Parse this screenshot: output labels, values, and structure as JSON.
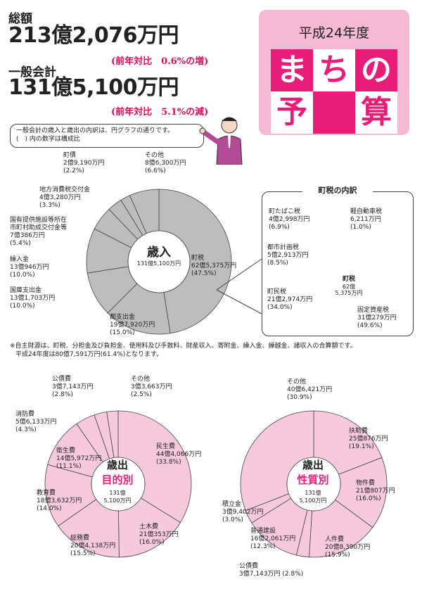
{
  "header": {
    "total_label": "総額",
    "total_value": "213億2,076万円",
    "total_compare": "(前年対比　0.6%の増)",
    "general_label": "一般会計",
    "general_value": "131億5,100万円",
    "general_compare": "(前年対比　5.1%の減)"
  },
  "title_box": {
    "year": "平成24年度",
    "chars": [
      "ま",
      "ち",
      "の",
      "予",
      "算"
    ]
  },
  "intro_note": {
    "line1": "一般会計の歳入と歳出の内訳は、円グラフの通りです。",
    "line2": "(　) 内の数字は構成比"
  },
  "revenue_center": {
    "title": "歳入",
    "amount": "131億5,100万円"
  },
  "town_tax_center": {
    "title": "町税",
    "line1": "62億",
    "line2": "5,375万円"
  },
  "town_tax_title": "町税の内訳",
  "purpose_center": {
    "title1": "歳出",
    "title2": "目的別",
    "line1": "131億",
    "line2": "5,100万円"
  },
  "nature_center": {
    "title1": "歳出",
    "title2": "性質別",
    "line1": "131億",
    "line2": "5,100万円"
  },
  "footnote": {
    "line1": "※自主財源は、町税、分担金及び負担金、使用料及び手数料、財産収入、寄附金、繰入金、繰越金、諸収入の合算額です。",
    "line2": "平成24年度は80億7,591万円(61.4%)となります。"
  },
  "chart_data": [
    {
      "type": "pie",
      "title": "歳入",
      "categories": [
        "町税",
        "都支出金",
        "国庫支出金",
        "繰入金",
        "国有提供施設等所在市町村助成交付金等",
        "地方消費税交付金",
        "町債",
        "その他"
      ],
      "amounts": [
        "62億5,375万円",
        "19億7,920万円",
        "13億1,703万円",
        "13億946万円",
        "7億386万円",
        "4億3,280万円",
        "2億9,190万円",
        "8億6,300万円"
      ],
      "values": [
        47.5,
        15.0,
        10.0,
        10.0,
        5.4,
        3.3,
        2.2,
        6.6
      ],
      "colors": [
        "#bdbdbd"
      ]
    },
    {
      "type": "pie",
      "title": "町税の内訳",
      "categories": [
        "固定資産税",
        "町民税",
        "都市計画税",
        "町たばこ税",
        "軽自動車税"
      ],
      "amounts": [
        "31億279万円",
        "21億2,974万円",
        "5億2,913万円",
        "4億2,998万円",
        "6,211万円"
      ],
      "values": [
        49.6,
        34.0,
        8.5,
        6.9,
        1.0
      ],
      "colors": [
        "#1a1a1a",
        "#e6e6e6",
        "#b9b9b9",
        "#6b6b6b",
        "#ffffff"
      ]
    },
    {
      "type": "pie",
      "title": "歳出 目的別",
      "categories": [
        "民生費",
        "土木費",
        "総務費",
        "教育費",
        "衛生費",
        "消防費",
        "公債費",
        "その他"
      ],
      "amounts": [
        "44億4,066万円",
        "21億353万円",
        "20億4,138万円",
        "18億3,632万円",
        "14億5,972万円",
        "5億6,133万円",
        "3億7,143万円",
        "3億3,663万円"
      ],
      "values": [
        33.8,
        16.0,
        15.5,
        14.0,
        11.1,
        4.3,
        2.8,
        2.5
      ],
      "colors": [
        "#f7c9dc"
      ]
    },
    {
      "type": "pie",
      "title": "歳出 性質別",
      "categories": [
        "扶助費",
        "物件費",
        "人件費",
        "公債費",
        "普通建設",
        "積立金",
        "その他"
      ],
      "amounts": [
        "25億876万円",
        "21億807万円",
        "20億8,390万円",
        "3億7,143万円",
        "16億2,061万円",
        "3億9,402万円",
        "40億6,421万円"
      ],
      "values": [
        19.1,
        16.0,
        15.9,
        2.8,
        12.3,
        3.0,
        30.9
      ],
      "colors": [
        "#f7c9dc"
      ]
    }
  ]
}
